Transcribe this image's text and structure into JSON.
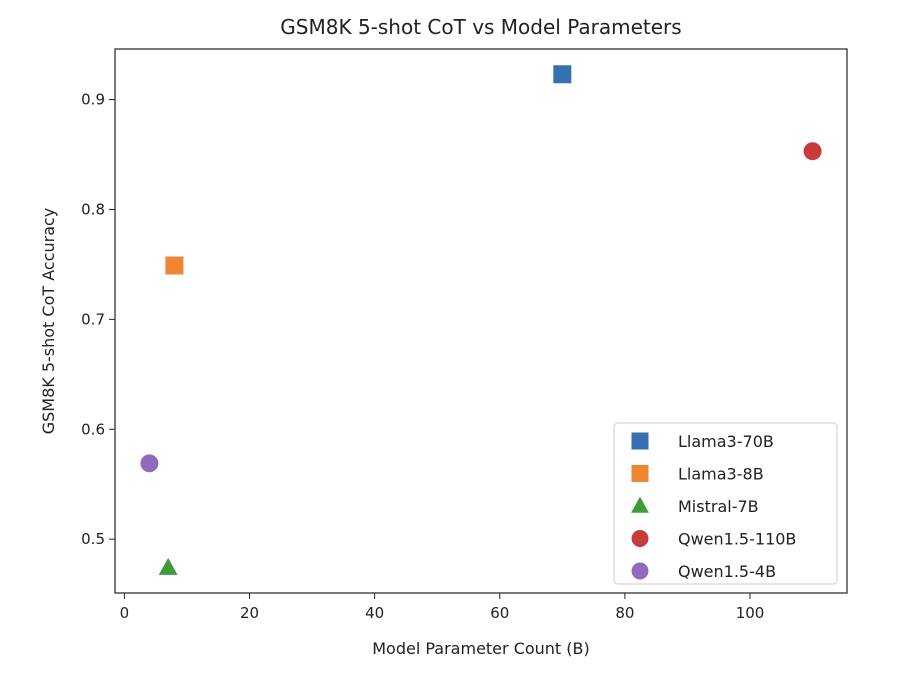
{
  "chart_data": {
    "type": "scatter",
    "title": "GSM8K 5-shot CoT vs Model Parameters",
    "xlabel": "Model Parameter Count (B)",
    "ylabel": "GSM8K 5-shot CoT Accuracy",
    "xlim": [
      -1.5,
      115.5
    ],
    "ylim": [
      0.451,
      0.946
    ],
    "xticks": [
      0,
      20,
      40,
      60,
      80,
      100
    ],
    "yticks": [
      0.5,
      0.6,
      0.7,
      0.8,
      0.9
    ],
    "grid": false,
    "legend_position": "lower-right",
    "series": [
      {
        "name": "Llama3-70B",
        "x": 70,
        "y": 0.923,
        "marker": "square",
        "color": "#3471b0"
      },
      {
        "name": "Llama3-8B",
        "x": 8,
        "y": 0.749,
        "marker": "square",
        "color": "#ef8532"
      },
      {
        "name": "Mistral-7B",
        "x": 7,
        "y": 0.474,
        "marker": "triangle",
        "color": "#3e9b3c"
      },
      {
        "name": "Qwen1.5-110B",
        "x": 110,
        "y": 0.853,
        "marker": "circle",
        "color": "#c93a3a"
      },
      {
        "name": "Qwen1.5-4B",
        "x": 4,
        "y": 0.569,
        "marker": "circle",
        "color": "#9169be"
      }
    ]
  }
}
